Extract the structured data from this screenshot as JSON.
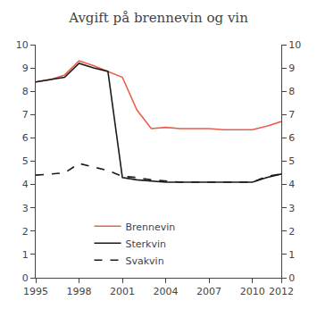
{
  "chart_data": {
    "type": "line",
    "title": "Avgift på brennevin og vin",
    "x": [
      1995,
      1996,
      1997,
      1998,
      1999,
      2000,
      2001,
      2002,
      2003,
      2004,
      2005,
      2006,
      2007,
      2008,
      2009,
      2010,
      2011,
      2012
    ],
    "series": [
      {
        "name": "Brennevin",
        "color": "#e8604c",
        "line_style": "solid",
        "values": [
          8.4,
          8.5,
          8.7,
          9.3,
          9.1,
          8.85,
          8.6,
          7.2,
          6.4,
          6.45,
          6.4,
          6.4,
          6.4,
          6.35,
          6.35,
          6.35,
          6.5,
          6.7
        ]
      },
      {
        "name": "Sterkvin",
        "color": "#1a1a1a",
        "line_style": "solid",
        "values": [
          8.4,
          8.5,
          8.6,
          9.2,
          9.0,
          8.85,
          4.3,
          4.2,
          4.15,
          4.1,
          4.1,
          4.1,
          4.1,
          4.1,
          4.1,
          4.1,
          4.3,
          4.45
        ]
      },
      {
        "name": "Svakvin",
        "color": "#1a1a1a",
        "line_style": "dashed",
        "values": [
          4.4,
          4.45,
          4.5,
          4.9,
          4.75,
          4.6,
          4.35,
          4.3,
          4.2,
          4.15,
          4.1,
          4.1,
          4.1,
          4.1,
          4.1,
          4.1,
          4.35,
          4.45
        ]
      }
    ],
    "xlim": [
      1995,
      2012
    ],
    "xticks": [
      1995,
      1998,
      2001,
      2004,
      2007,
      2010,
      2012
    ],
    "ylim": [
      0,
      10
    ],
    "yticks": [
      0,
      1,
      2,
      3,
      4,
      5,
      6,
      7,
      8,
      9,
      10
    ],
    "y2lim": [
      0,
      10
    ],
    "y2ticks": [
      0,
      1,
      2,
      3,
      4,
      5,
      6,
      7,
      8,
      9,
      10
    ],
    "grid": false,
    "legend": "lower left"
  }
}
